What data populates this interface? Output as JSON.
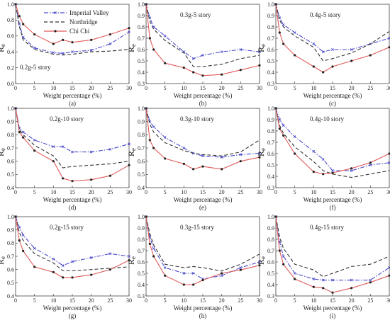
{
  "legend": {
    "placement": "top-left of panel (a)",
    "entries": [
      {
        "name": "Imperial Valley",
        "color": "#4a4acc",
        "style": "dash-dot",
        "marker": "x"
      },
      {
        "name": "Northridge",
        "color": "#333333",
        "style": "dashed",
        "marker": "none"
      },
      {
        "name": "Chi Chi",
        "color": "#e05a5a",
        "style": "solid",
        "marker": "dot"
      }
    ]
  },
  "chart_data": [
    {
      "type": "line",
      "panel": "(a)",
      "title": "0.2g-5 story",
      "xlabel": "Weight percentage (%)",
      "ylabel": "Re",
      "xlim": [
        0,
        30
      ],
      "ylim": [
        0,
        1
      ],
      "xticks": [
        "0",
        "5",
        "10",
        "15",
        "20",
        "25",
        "30"
      ],
      "yticks": [
        "0.0",
        "0.2",
        "0.4",
        "0.6",
        "0.8",
        "1.0"
      ],
      "x": [
        0,
        1,
        2,
        5,
        10,
        12.5,
        15,
        20,
        25,
        30
      ],
      "series": [
        {
          "name": "Imperial Valley",
          "values": [
            1.0,
            0.75,
            0.58,
            0.45,
            0.39,
            0.38,
            0.4,
            0.42,
            0.5,
            0.65
          ]
        },
        {
          "name": "Northridge",
          "values": [
            1.0,
            0.72,
            0.55,
            0.43,
            0.37,
            0.36,
            0.37,
            0.4,
            0.41,
            0.43
          ]
        },
        {
          "name": "Chi Chi",
          "values": [
            1.0,
            0.85,
            0.75,
            0.62,
            0.5,
            0.55,
            0.52,
            0.55,
            0.62,
            0.7
          ]
        }
      ]
    },
    {
      "type": "line",
      "panel": "(b)",
      "title": "0.3g-5 story",
      "xlabel": "Weight percentage (%)",
      "ylabel": "Re",
      "xlim": [
        0,
        30
      ],
      "ylim": [
        0.3,
        1.0
      ],
      "xticks": [
        "0",
        "5",
        "10",
        "15",
        "20",
        "25",
        "30"
      ],
      "yticks": [
        "0.3",
        "0.4",
        "0.5",
        "0.6",
        "0.7",
        "0.8",
        "0.9",
        "1.0"
      ],
      "x": [
        0,
        1,
        2,
        5,
        10,
        12.5,
        15,
        20,
        25,
        30
      ],
      "series": [
        {
          "name": "Imperial Valley",
          "values": [
            1.0,
            0.88,
            0.8,
            0.72,
            0.58,
            0.52,
            0.55,
            0.58,
            0.6,
            0.58
          ]
        },
        {
          "name": "Northridge",
          "values": [
            1.0,
            0.85,
            0.78,
            0.68,
            0.57,
            0.45,
            0.45,
            0.47,
            0.52,
            0.55
          ]
        },
        {
          "name": "Chi Chi",
          "values": [
            1.0,
            0.7,
            0.6,
            0.48,
            0.44,
            0.4,
            0.37,
            0.38,
            0.42,
            0.46
          ]
        }
      ]
    },
    {
      "type": "line",
      "panel": "(c)",
      "title": "0.4g-5 story",
      "xlabel": "Weight percentage (%)",
      "ylabel": "Re",
      "xlim": [
        0,
        30
      ],
      "ylim": [
        0.3,
        1.0
      ],
      "xticks": [
        "0",
        "5",
        "10",
        "15",
        "20",
        "25",
        "30"
      ],
      "yticks": [
        "0.3",
        "0.4",
        "0.5",
        "0.6",
        "0.7",
        "0.8",
        "0.9",
        "1.0"
      ],
      "x": [
        0,
        1,
        2,
        5,
        10,
        12.5,
        15,
        20,
        25,
        30
      ],
      "series": [
        {
          "name": "Imperial Valley",
          "values": [
            1.0,
            0.88,
            0.82,
            0.75,
            0.65,
            0.58,
            0.6,
            0.6,
            0.65,
            0.7
          ]
        },
        {
          "name": "Northridge",
          "values": [
            1.0,
            0.86,
            0.8,
            0.72,
            0.62,
            0.5,
            0.52,
            0.57,
            0.65,
            0.76
          ]
        },
        {
          "name": "Chi Chi",
          "values": [
            1.0,
            0.75,
            0.65,
            0.55,
            0.45,
            0.4,
            0.45,
            0.5,
            0.55,
            0.62
          ]
        }
      ]
    },
    {
      "type": "line",
      "panel": "(d)",
      "title": "0.2g-10 story",
      "xlabel": "Weight percentage (%)",
      "ylabel": "Re",
      "xlim": [
        0,
        30
      ],
      "ylim": [
        0.4,
        1.0
      ],
      "xticks": [
        "0",
        "5",
        "10",
        "15",
        "20",
        "25",
        "30"
      ],
      "yticks": [
        "0.4",
        "0.5",
        "0.6",
        "0.7",
        "0.8",
        "0.9",
        "1.0"
      ],
      "x": [
        0,
        1,
        2,
        5,
        10,
        12.5,
        15,
        20,
        25,
        30
      ],
      "series": [
        {
          "name": "Imperial Valley",
          "values": [
            1.0,
            0.85,
            0.82,
            0.76,
            0.71,
            0.71,
            0.67,
            0.67,
            0.69,
            0.73
          ]
        },
        {
          "name": "Northridge",
          "values": [
            1.0,
            0.84,
            0.8,
            0.72,
            0.64,
            0.55,
            0.56,
            0.57,
            0.58,
            0.6
          ]
        },
        {
          "name": "Chi Chi",
          "values": [
            1.0,
            0.82,
            0.78,
            0.68,
            0.6,
            0.47,
            0.45,
            0.46,
            0.49,
            0.57
          ]
        }
      ]
    },
    {
      "type": "line",
      "panel": "(e)",
      "title": "0.3g-10 story",
      "xlabel": "Weight percentage (%)",
      "ylabel": "Re",
      "xlim": [
        0,
        30
      ],
      "ylim": [
        0.4,
        1.0
      ],
      "xticks": [
        "0",
        "5",
        "10",
        "15",
        "20",
        "25",
        "30"
      ],
      "yticks": [
        "0.4",
        "0.5",
        "0.6",
        "0.7",
        "0.8",
        "0.9",
        "1.0"
      ],
      "x": [
        0,
        1,
        2,
        5,
        10,
        12.5,
        15,
        20,
        25,
        30
      ],
      "series": [
        {
          "name": "Imperial Valley",
          "values": [
            1.0,
            0.9,
            0.86,
            0.78,
            0.7,
            0.66,
            0.64,
            0.63,
            0.65,
            0.66
          ]
        },
        {
          "name": "Northridge",
          "values": [
            1.0,
            0.88,
            0.82,
            0.74,
            0.68,
            0.66,
            0.65,
            0.64,
            0.67,
            0.76
          ]
        },
        {
          "name": "Chi Chi",
          "values": [
            1.0,
            0.76,
            0.7,
            0.62,
            0.58,
            0.54,
            0.56,
            0.54,
            0.6,
            0.63
          ]
        }
      ]
    },
    {
      "type": "line",
      "panel": "(f)",
      "title": "0.4g-10 story",
      "xlabel": "Weight percentage (%)",
      "ylabel": "Re",
      "xlim": [
        0,
        30
      ],
      "ylim": [
        0.3,
        1.0
      ],
      "xticks": [
        "0",
        "5",
        "10",
        "15",
        "20",
        "25",
        "30"
      ],
      "yticks": [
        "0.3",
        "0.4",
        "0.5",
        "0.6",
        "0.7",
        "0.8",
        "0.9",
        "1.0"
      ],
      "x": [
        0,
        1,
        2,
        5,
        10,
        12.5,
        15,
        20,
        25,
        30
      ],
      "series": [
        {
          "name": "Imperial Valley",
          "values": [
            1.0,
            0.9,
            0.85,
            0.75,
            0.62,
            0.55,
            0.45,
            0.45,
            0.5,
            0.52
          ]
        },
        {
          "name": "Northridge",
          "values": [
            1.0,
            0.85,
            0.78,
            0.66,
            0.53,
            0.45,
            0.42,
            0.39,
            0.42,
            0.45
          ]
        },
        {
          "name": "Chi Chi",
          "values": [
            1.0,
            0.82,
            0.76,
            0.6,
            0.44,
            0.42,
            0.43,
            0.47,
            0.52,
            0.6
          ]
        }
      ]
    },
    {
      "type": "line",
      "panel": "(g)",
      "title": "0.2g-15 story",
      "xlabel": "Weight percentage (%)",
      "ylabel": "Re",
      "xlim": [
        0,
        30
      ],
      "ylim": [
        0.4,
        1.0
      ],
      "xticks": [
        "0",
        "5",
        "10",
        "15",
        "20",
        "25",
        "30"
      ],
      "yticks": [
        "0.4",
        "0.5",
        "0.6",
        "0.7",
        "0.8",
        "0.9",
        "1.0"
      ],
      "x": [
        0,
        1,
        2,
        5,
        10,
        12.5,
        15,
        20,
        25,
        30
      ],
      "series": [
        {
          "name": "Imperial Valley",
          "values": [
            1.0,
            0.92,
            0.86,
            0.76,
            0.68,
            0.63,
            0.66,
            0.69,
            0.72,
            0.7
          ]
        },
        {
          "name": "Northridge",
          "values": [
            1.0,
            0.88,
            0.82,
            0.72,
            0.65,
            0.59,
            0.59,
            0.6,
            0.61,
            0.62
          ]
        },
        {
          "name": "Chi Chi",
          "values": [
            1.0,
            0.82,
            0.74,
            0.62,
            0.58,
            0.54,
            0.54,
            0.56,
            0.6,
            0.67
          ]
        }
      ]
    },
    {
      "type": "line",
      "panel": "(h)",
      "title": "0.3g-15 story",
      "xlabel": "Weight percentage (%)",
      "ylabel": "Re",
      "xlim": [
        0,
        30
      ],
      "ylim": [
        0.3,
        1.0
      ],
      "xticks": [
        "0",
        "5",
        "10",
        "15",
        "20",
        "25",
        "30"
      ],
      "yticks": [
        "0.3",
        "0.4",
        "0.5",
        "0.6",
        "0.7",
        "0.8",
        "0.9",
        "1.0"
      ],
      "x": [
        0,
        1,
        2,
        5,
        10,
        12.5,
        15,
        20,
        25,
        30
      ],
      "series": [
        {
          "name": "Imperial Valley",
          "values": [
            1.0,
            0.82,
            0.72,
            0.55,
            0.5,
            0.5,
            0.45,
            0.48,
            0.55,
            0.6
          ]
        },
        {
          "name": "Northridge",
          "values": [
            1.0,
            0.85,
            0.75,
            0.58,
            0.55,
            0.56,
            0.55,
            0.52,
            0.58,
            0.67
          ]
        },
        {
          "name": "Chi Chi",
          "values": [
            1.0,
            0.76,
            0.65,
            0.48,
            0.4,
            0.4,
            0.44,
            0.5,
            0.53,
            0.57
          ]
        }
      ]
    },
    {
      "type": "line",
      "panel": "(i)",
      "title": "0.4g-15 story",
      "xlabel": "Weight percentage (%)",
      "ylabel": "Re",
      "xlim": [
        0,
        30
      ],
      "ylim": [
        0.3,
        1.0
      ],
      "xticks": [
        "0",
        "5",
        "10",
        "15",
        "20",
        "25",
        "30"
      ],
      "yticks": [
        "0.3",
        "0.4",
        "0.5",
        "0.6",
        "0.7",
        "0.8",
        "0.9",
        "1.0"
      ],
      "x": [
        0,
        1,
        2,
        5,
        10,
        12.5,
        15,
        20,
        25,
        30
      ],
      "series": [
        {
          "name": "Imperial Valley",
          "values": [
            1.0,
            0.78,
            0.65,
            0.5,
            0.45,
            0.44,
            0.44,
            0.44,
            0.44,
            0.55
          ]
        },
        {
          "name": "Northridge",
          "values": [
            1.0,
            0.82,
            0.72,
            0.58,
            0.53,
            0.47,
            0.5,
            0.56,
            0.58,
            0.65
          ]
        },
        {
          "name": "Chi Chi",
          "values": [
            1.0,
            0.7,
            0.58,
            0.45,
            0.38,
            0.37,
            0.33,
            0.37,
            0.42,
            0.48
          ]
        }
      ]
    }
  ]
}
